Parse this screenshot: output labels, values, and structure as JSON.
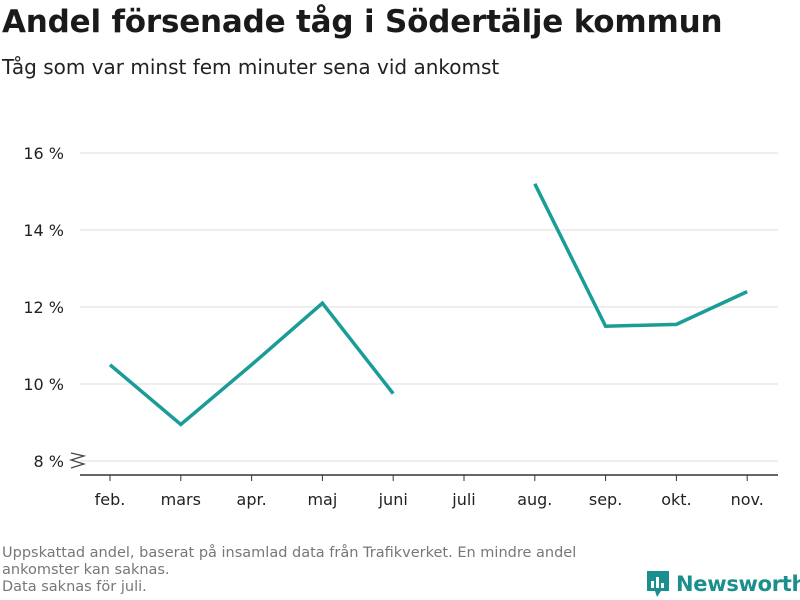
{
  "header": {
    "title": "Andel försenade tåg i Södertälje kommun",
    "subtitle": "Tåg som var minst fem minuter sena vid ankomst"
  },
  "chart_data": {
    "type": "line",
    "title": "Andel försenade tåg i Södertälje kommun",
    "subtitle": "Tåg som var minst fem minuter sena vid ankomst",
    "categories": [
      "feb.",
      "mars",
      "apr.",
      "maj",
      "juni",
      "juli",
      "aug.",
      "sep.",
      "okt.",
      "nov."
    ],
    "series": [
      {
        "values": [
          10.5,
          8.95,
          10.5,
          12.1,
          9.75,
          null,
          15.2,
          11.5,
          11.55,
          12.4
        ],
        "color": "#1a9c97"
      }
    ],
    "yticks": [
      8,
      10,
      12,
      14,
      16
    ],
    "ytick_suffix": " %",
    "ylim": [
      8,
      16
    ],
    "grid": true,
    "axis_break": true
  },
  "footer": {
    "notes": [
      "Uppskattad andel, baserat på insamlad data från Trafikverket. En mindre andel ankomster kan saknas.",
      "Data saknas för juli."
    ],
    "brand": "Newsworthy"
  },
  "colors": {
    "line": "#1a9c97",
    "grid": "#dddddd",
    "axis": "#333333",
    "brand": "#1b8f8d"
  },
  "icons": {
    "brand_logo": "bar-chart-speech-bubble-icon"
  }
}
